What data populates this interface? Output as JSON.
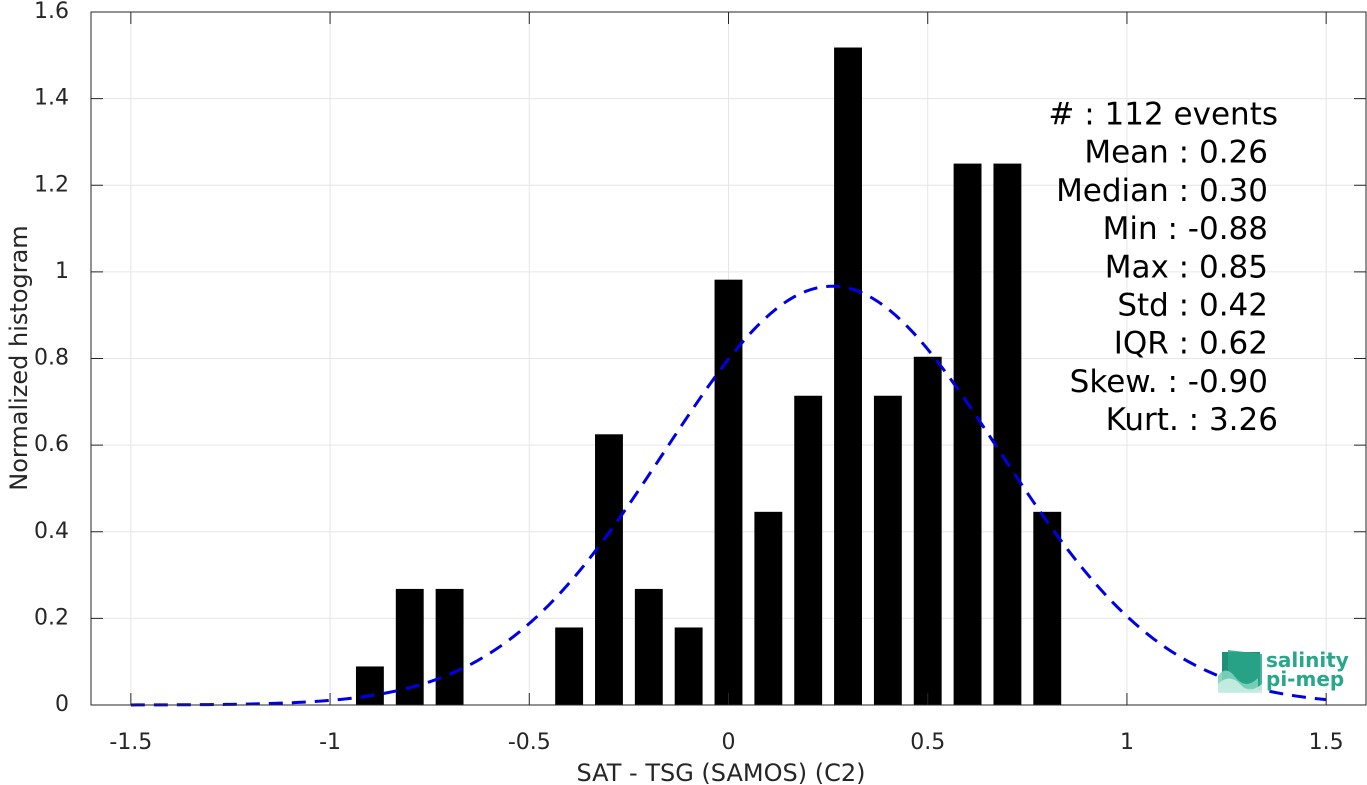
{
  "chart_data": {
    "type": "bar",
    "xlabel": "SAT - TSG (SAMOS) (C2)",
    "ylabel": "Normalized histogram",
    "xlim": [
      -1.6,
      1.6
    ],
    "ylim": [
      0,
      1.6
    ],
    "xticks": [
      -1.5,
      -1,
      -0.5,
      0,
      0.5,
      1,
      1.5
    ],
    "xtick_labels": [
      "-1.5",
      "-1",
      "-0.5",
      "0",
      "0.5",
      "1",
      "1.5"
    ],
    "yticks": [
      0,
      0.2,
      0.4,
      0.6,
      0.8,
      1,
      1.2,
      1.4,
      1.6
    ],
    "ytick_labels": [
      "0",
      "0.2",
      "0.4",
      "0.6",
      "0.8",
      "1",
      "1.2",
      "1.4",
      "1.6"
    ],
    "grid": true,
    "bar_color": "#000000",
    "bar_width": 0.07,
    "bars": [
      {
        "x": -0.9,
        "value": 0.089
      },
      {
        "x": -0.8,
        "value": 0.268
      },
      {
        "x": -0.7,
        "value": 0.268
      },
      {
        "x": -0.4,
        "value": 0.179
      },
      {
        "x": -0.3,
        "value": 0.625
      },
      {
        "x": -0.2,
        "value": 0.268
      },
      {
        "x": -0.1,
        "value": 0.179
      },
      {
        "x": 0.0,
        "value": 0.982
      },
      {
        "x": 0.1,
        "value": 0.446
      },
      {
        "x": 0.2,
        "value": 0.714
      },
      {
        "x": 0.3,
        "value": 1.518
      },
      {
        "x": 0.4,
        "value": 0.714
      },
      {
        "x": 0.5,
        "value": 0.804
      },
      {
        "x": 0.6,
        "value": 1.25
      },
      {
        "x": 0.7,
        "value": 1.25
      },
      {
        "x": 0.8,
        "value": 0.446
      }
    ],
    "fit_curve": {
      "type": "gaussian",
      "mean": 0.26,
      "std": 0.42,
      "peak": 0.967,
      "x_range": [
        -1.5,
        1.5
      ],
      "color": "#0000e6",
      "style": "dashed"
    },
    "stats": [
      {
        "label": "#  : 112 events"
      },
      {
        "label": "Mean : 0.26"
      },
      {
        "label": "Median : 0.30"
      },
      {
        "label": "Min : -0.88"
      },
      {
        "label": "Max : 0.85"
      },
      {
        "label": "Std : 0.42"
      },
      {
        "label": "IQR : 0.62"
      },
      {
        "label": "Skew. : -0.90"
      },
      {
        "label": "Kurt. : 3.26"
      }
    ]
  },
  "logo": {
    "line1": "salinity",
    "line2": "pi-mep",
    "color": "#2aa68a"
  }
}
